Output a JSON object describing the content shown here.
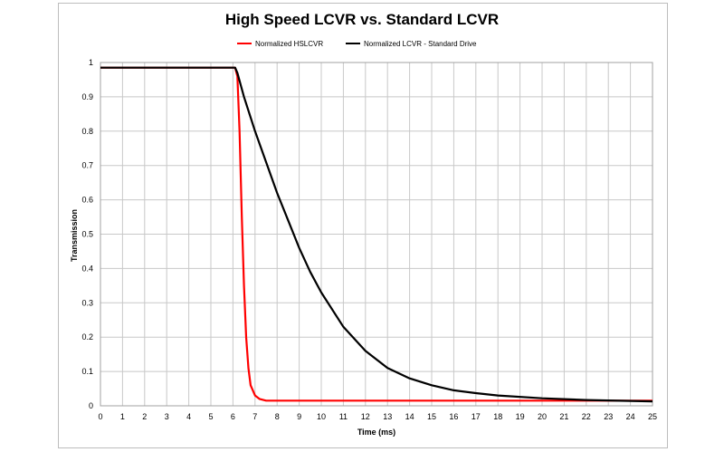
{
  "chart_data": {
    "type": "line",
    "title": "High Speed LCVR vs. Standard LCVR",
    "xlabel": "Time (ms)",
    "ylabel": "Transmission",
    "xlim": [
      0,
      25
    ],
    "ylim": [
      0,
      1
    ],
    "x_ticks": [
      0,
      1,
      2,
      3,
      4,
      5,
      6,
      7,
      8,
      9,
      10,
      11,
      12,
      13,
      14,
      15,
      16,
      17,
      18,
      19,
      20,
      21,
      22,
      23,
      24,
      25
    ],
    "y_ticks": [
      0,
      0.1,
      0.2,
      0.3,
      0.4,
      0.5,
      0.6,
      0.7,
      0.8,
      0.9,
      1
    ],
    "grid": true,
    "legend_position": "top",
    "series": [
      {
        "name": "Normalized HSLCVR",
        "color": "#ff0000",
        "x": [
          0,
          6.1,
          6.2,
          6.3,
          6.4,
          6.5,
          6.6,
          6.7,
          6.8,
          7.0,
          7.2,
          7.5,
          8,
          10,
          15,
          20,
          25
        ],
        "y": [
          0.985,
          0.985,
          0.96,
          0.8,
          0.55,
          0.35,
          0.2,
          0.11,
          0.06,
          0.03,
          0.02,
          0.015,
          0.015,
          0.015,
          0.015,
          0.015,
          0.015
        ]
      },
      {
        "name": "Normalized LCVR - Standard Drive",
        "color": "#000000",
        "x": [
          0,
          6.1,
          6.2,
          6.5,
          7,
          7.5,
          8,
          8.5,
          9,
          9.5,
          10,
          11,
          12,
          13,
          14,
          15,
          16,
          17,
          18,
          20,
          22,
          25
        ],
        "y": [
          0.985,
          0.985,
          0.97,
          0.9,
          0.8,
          0.71,
          0.62,
          0.54,
          0.46,
          0.39,
          0.33,
          0.23,
          0.16,
          0.11,
          0.08,
          0.06,
          0.045,
          0.037,
          0.03,
          0.022,
          0.017,
          0.013
        ]
      }
    ]
  }
}
